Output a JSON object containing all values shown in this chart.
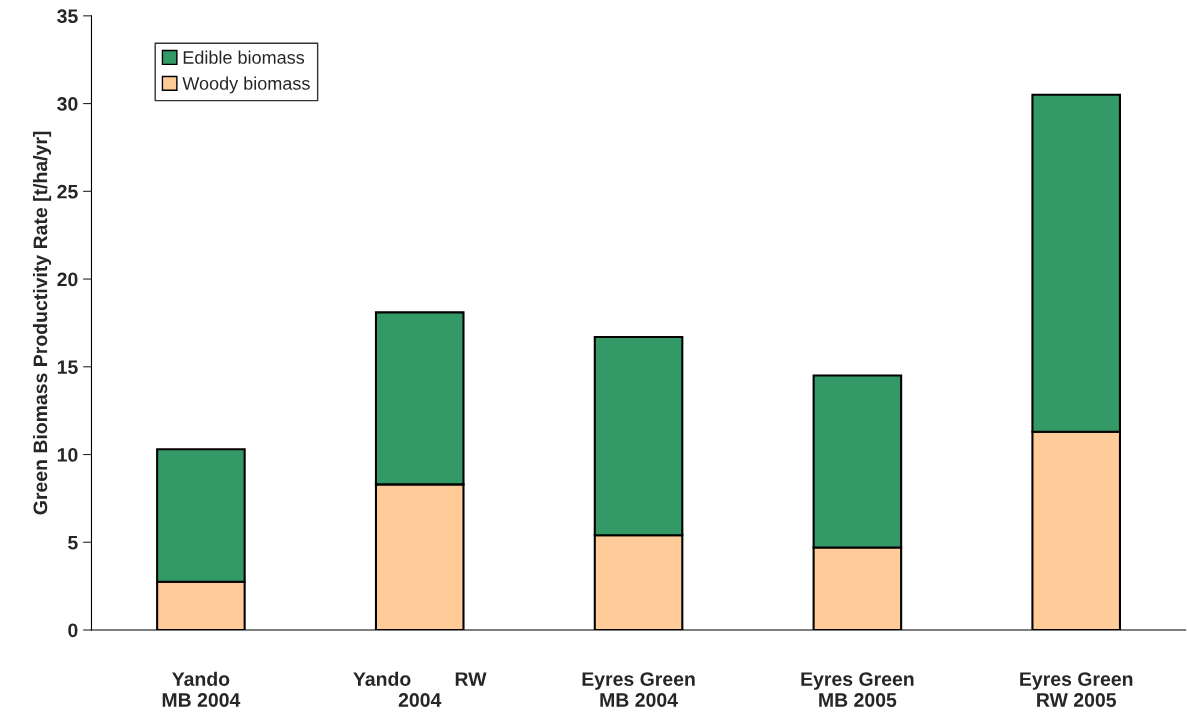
{
  "chart_data": {
    "type": "bar",
    "stacked": true,
    "categories": [
      "Yando\nMB 2004",
      "Yando        RW\n2004",
      "Eyres Green\nMB 2004",
      "Eyres Green\nMB 2005",
      "Eyres Green\nRW 2005"
    ],
    "series": [
      {
        "name": "Woody biomass",
        "color": "#ffcc99",
        "values": [
          2.75,
          8.3,
          5.4,
          4.7,
          11.3
        ]
      },
      {
        "name": "Edible biomass",
        "color": "#339966",
        "values": [
          7.55,
          9.8,
          11.3,
          9.8,
          19.2
        ]
      }
    ],
    "ylabel": "Green Biomass Productivity Rate [t/ha/yr]",
    "ylim": [
      0,
      35
    ],
    "yticks": [
      0,
      5,
      10,
      15,
      20,
      25,
      30,
      35
    ],
    "grid": false,
    "legend": "top left"
  }
}
